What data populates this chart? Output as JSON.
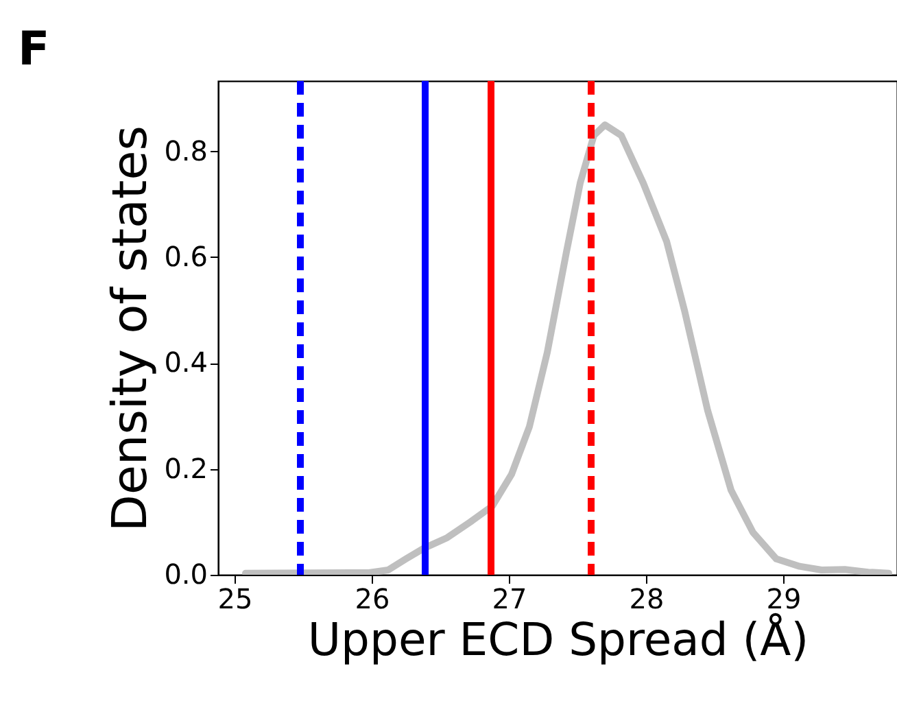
{
  "chart_data": {
    "type": "line",
    "title": "F",
    "xlabel": "Upper ECD Spread (Å)",
    "ylabel": "Density of states",
    "x": [
      25.08,
      25.98,
      26.12,
      26.25,
      26.38,
      26.55,
      26.72,
      26.88,
      27.02,
      27.15,
      27.28,
      27.42,
      27.52,
      27.62,
      27.7,
      27.82,
      27.98,
      28.15,
      28.28,
      28.45,
      28.62,
      28.78,
      28.95,
      29.12,
      29.28,
      29.45,
      29.62,
      29.77
    ],
    "series": [
      {
        "color": "#bfbfbf",
        "values": [
          0.003,
          0.004,
          0.009,
          0.03,
          0.05,
          0.07,
          0.1,
          0.13,
          0.19,
          0.28,
          0.42,
          0.61,
          0.74,
          0.83,
          0.85,
          0.83,
          0.74,
          0.63,
          0.5,
          0.31,
          0.16,
          0.08,
          0.03,
          0.016,
          0.009,
          0.01,
          0.005,
          0.003
        ]
      }
    ],
    "xlim": [
      24.88,
      29.83
    ],
    "xticks": [
      25,
      26,
      27,
      28,
      29
    ],
    "ylim": [
      0,
      0.933
    ],
    "yticks": [
      {
        "value": 0,
        "label": "0.0"
      },
      {
        "value": 0.2,
        "label": "0.2"
      },
      {
        "value": 0.4,
        "label": "0.4"
      },
      {
        "value": 0.6,
        "label": "0.6"
      },
      {
        "value": 0.8,
        "label": "0.8"
      }
    ],
    "ref_lines": [
      {
        "axis": "x",
        "value": 25.48,
        "color": "#0000ff",
        "line_style": "dashed"
      },
      {
        "axis": "x",
        "value": 26.39,
        "color": "#0000ff",
        "line_style": "solid"
      },
      {
        "axis": "x",
        "value": 26.87,
        "color": "#ff0000",
        "line_style": "solid"
      },
      {
        "axis": "x",
        "value": 27.6,
        "color": "#ff0000",
        "line_style": "dashed"
      }
    ],
    "grid": false,
    "marker": "none",
    "line_style": "solid"
  }
}
